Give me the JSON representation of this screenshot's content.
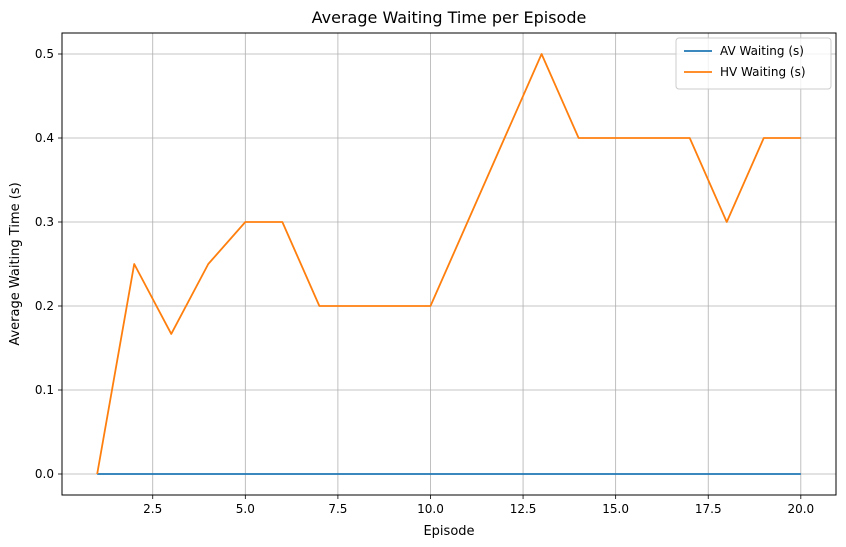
{
  "chart_data": {
    "type": "line",
    "title": "Average Waiting Time per Episode",
    "xlabel": "Episode",
    "ylabel": "Average Waiting Time (s)",
    "xlim": [
      0.05,
      20.95
    ],
    "ylim": [
      -0.025,
      0.525
    ],
    "xticks": [
      2.5,
      5.0,
      7.5,
      10.0,
      12.5,
      15.0,
      17.5,
      20.0
    ],
    "xtick_labels": [
      "2.5",
      "5.0",
      "7.5",
      "10.0",
      "12.5",
      "15.0",
      "17.5",
      "20.0"
    ],
    "yticks": [
      0.0,
      0.1,
      0.2,
      0.3,
      0.4,
      0.5
    ],
    "ytick_labels": [
      "0.0",
      "0.1",
      "0.2",
      "0.3",
      "0.4",
      "0.5"
    ],
    "grid": true,
    "legend_position": "top-right",
    "x": [
      1,
      2,
      3,
      4,
      5,
      6,
      7,
      8,
      9,
      10,
      11,
      12,
      13,
      14,
      15,
      16,
      17,
      18,
      19,
      20
    ],
    "series": [
      {
        "name": "AV Waiting (s)",
        "color": "#1f77b4",
        "values": [
          0,
          0,
          0,
          0,
          0,
          0,
          0,
          0,
          0,
          0,
          0,
          0,
          0,
          0,
          0,
          0,
          0,
          0,
          0,
          0
        ]
      },
      {
        "name": "HV Waiting (s)",
        "color": "#ff7f0e",
        "values": [
          0.0,
          0.25,
          0.1667,
          0.25,
          0.3,
          0.3,
          0.2,
          0.2,
          0.2,
          0.2,
          0.3,
          0.4,
          0.5,
          0.4,
          0.4,
          0.4,
          0.4,
          0.3,
          0.4,
          0.4
        ]
      }
    ]
  }
}
